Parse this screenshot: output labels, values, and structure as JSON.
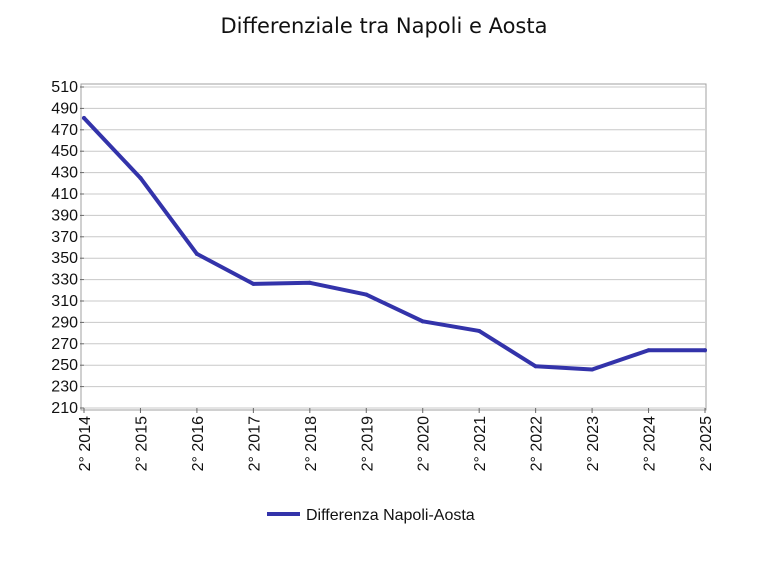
{
  "chart_data": {
    "type": "line",
    "title": "Differenziale tra Napoli e Aosta",
    "xlabel": "",
    "ylabel": "",
    "categories": [
      "2° 2014",
      "2° 2015",
      "2° 2016",
      "2° 2017",
      "2° 2018",
      "2° 2019",
      "2° 2020",
      "2° 2021",
      "2° 2022",
      "2° 2023",
      "2° 2024",
      "2° 2025"
    ],
    "series": [
      {
        "name": "Differenza Napoli-Aosta",
        "color": "#3333aa",
        "values": [
          481,
          425,
          354,
          326,
          327,
          316,
          291,
          282,
          249,
          246,
          264,
          264
        ]
      }
    ],
    "ylim": [
      210,
      510
    ],
    "yticks": [
      210,
      230,
      250,
      270,
      290,
      310,
      330,
      350,
      370,
      390,
      410,
      430,
      450,
      470,
      490,
      510
    ],
    "grid": true,
    "legend": "bottom"
  }
}
